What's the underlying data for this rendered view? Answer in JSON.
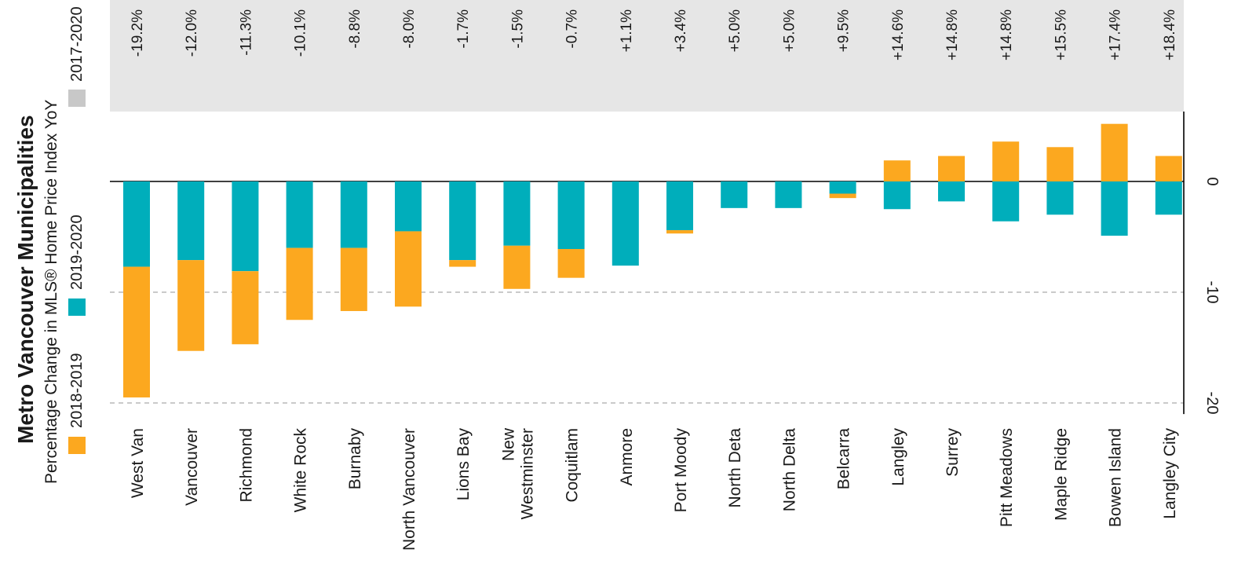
{
  "colors": {
    "series_2018_2019": "#FCA81F",
    "series_2019_2020": "#00AEBB",
    "series_2017_2020": "#C8C8C8",
    "band": "#E6E6E6",
    "gridline": "#B8B8B8",
    "zero_line": "#000000"
  },
  "chart_data": {
    "type": "bar",
    "orientation": "rotated",
    "title": "Metro Vancouver Municipalities",
    "subtitle": "Percentage Change in MLS® Home Price Index YoY",
    "legend": {
      "placement": "left",
      "entries": [
        "2018-2019",
        "2019-2020",
        "2017-2020"
      ]
    },
    "categories": [
      "West Van",
      "Vancouver",
      "Richmond",
      "White Rock",
      "Burnaby",
      "North Vancouver",
      "Lions Bay",
      "New Westminster",
      "Coquitlam",
      "Anmore",
      "Port Moody",
      "North Deta",
      "North Delta",
      "Belcarra",
      "Langley",
      "Surrey",
      "Pitt Meadows",
      "Maple Ridge",
      "Bowen Island",
      "Langley City"
    ],
    "series": [
      {
        "name": "2019-2020",
        "values": [
          -7.7,
          -7.1,
          -8.1,
          -6.0,
          -6.0,
          -4.5,
          -7.1,
          -5.8,
          -6.1,
          -7.6,
          -4.4,
          -2.4,
          -2.4,
          -1.1,
          -2.5,
          -1.8,
          -3.6,
          -3.0,
          -4.9,
          -3.0
        ]
      },
      {
        "name": "2018-2019",
        "values": [
          -11.8,
          -8.2,
          -6.6,
          -6.5,
          -5.7,
          -6.8,
          -0.6,
          -3.9,
          -2.6,
          0,
          -0.3,
          0,
          0,
          -0.4,
          1.9,
          2.3,
          3.6,
          3.1,
          5.2,
          2.3
        ]
      },
      {
        "name": "2017-2020",
        "labels": [
          "-19.2%",
          "-12.0%",
          "-11.3%",
          "-10.1%",
          "-8.8%",
          "-8.0%",
          "-1.7%",
          "-1.5%",
          "-0.7%",
          "+1.1%",
          "+3.4%",
          "+5.0%",
          "+5.0%",
          "+9.5%",
          "+14.6%",
          "+14.8%",
          "+14.8%",
          "+15.5%",
          "+17.4%",
          "+18.4%"
        ]
      }
    ],
    "axis": {
      "ticks": [
        "0",
        "-10",
        "-20"
      ],
      "range": [
        -21,
        6
      ]
    },
    "grid": true
  }
}
